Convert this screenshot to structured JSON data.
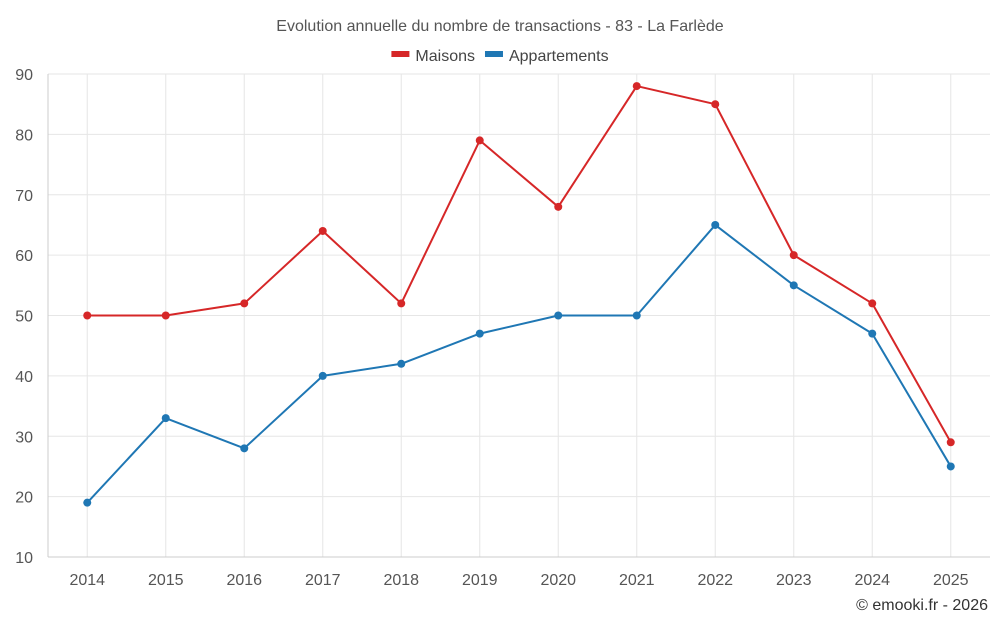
{
  "chart_data": {
    "type": "line",
    "title": "Evolution annuelle du nombre de transactions - 83 - La Farlède",
    "categories": [
      "2014",
      "2015",
      "2016",
      "2017",
      "2018",
      "2019",
      "2020",
      "2021",
      "2022",
      "2023",
      "2024",
      "2025"
    ],
    "series": [
      {
        "name": "Maisons",
        "color": "#d62728",
        "values": [
          50,
          50,
          52,
          64,
          52,
          79,
          68,
          88,
          85,
          60,
          52,
          29
        ]
      },
      {
        "name": "Appartements",
        "color": "#1f77b4",
        "values": [
          19,
          33,
          28,
          40,
          42,
          47,
          50,
          50,
          65,
          55,
          47,
          25
        ]
      }
    ],
    "ylim": [
      10,
      90
    ],
    "yticks": [
      10,
      20,
      30,
      40,
      50,
      60,
      70,
      80,
      90
    ],
    "grid": true,
    "legend_position": "top-center",
    "credit": "© emooki.fr - 2026"
  }
}
